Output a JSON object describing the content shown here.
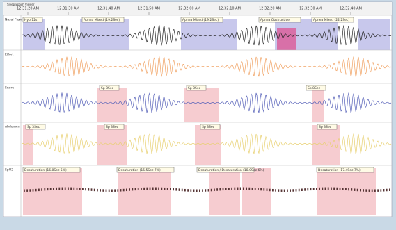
{
  "window": {
    "title": "Sleep Epoch Viewer",
    "times": [
      "12:31:20 AM",
      "12:31:30 AM",
      "12:31:40 AM",
      "12:31:50 AM",
      "12:32:00 AM",
      "12:32:10 AM",
      "12:32:20 AM",
      "12:32:30 AM",
      "12:32:40 AM"
    ]
  },
  "channels": [
    {
      "label": "Nasal Flow",
      "annotations": [
        "Hyp 12s",
        "Apnea Mixed (19.2Sec)",
        "Apnea Mixed (19.2Sec)",
        "Apnea Obstructive",
        "Apnea Mixed (22.2Sec)"
      ]
    },
    {
      "label": "Effort",
      "annotations": []
    },
    {
      "label": "Snore",
      "annotations": [
        "Sp 8Sec",
        "Sp 8Sec",
        "Sp 8Sec"
      ]
    },
    {
      "label": "Abdomen",
      "annotations": [
        "Sp 3Sec",
        "Sp 3Sec",
        "Sp 3Sec",
        "Sp 3Sec"
      ]
    },
    {
      "label": "SpO2",
      "annotations": [
        "Desaturation (16.0Sec 5%)",
        "Desaturation (15.5Sec 7%)",
        "Desaturation / Desaturation (18.0Sec 6%)",
        "Desaturation (17.4Sec 7%)"
      ]
    }
  ]
}
